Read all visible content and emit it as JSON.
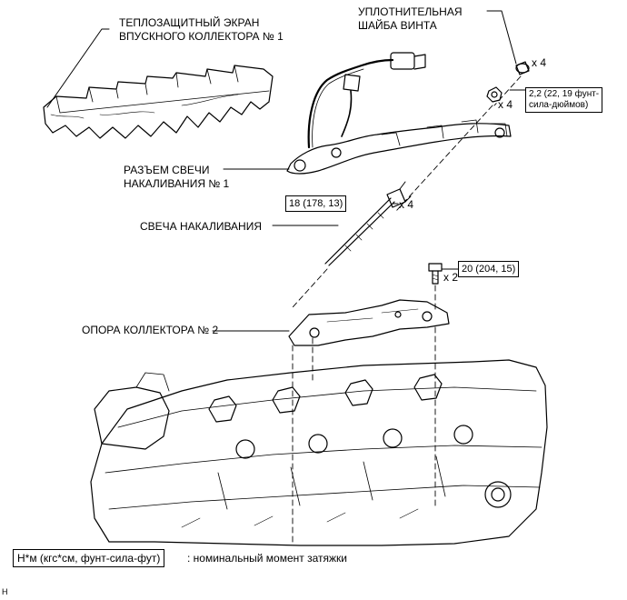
{
  "labels": {
    "heat_shield_line1": "ТЕПЛОЗАЩИТНЫЙ ЭКРАН",
    "heat_shield_line2": "ВПУСКНОГО КОЛЛЕКТОРА № 1",
    "screw_washer_line1": "УПЛОТНИТЕЛЬНАЯ",
    "screw_washer_line2": "ШАЙБА ВИНТА",
    "connector_line1": "РАЗЪЕМ СВЕЧИ",
    "connector_line2": "НАКАЛИВАНИЯ № 1",
    "glow_plug": "СВЕЧА НАКАЛИВАНИЯ",
    "bracket": "ОПОРА КОЛЛЕКТОРА № 2"
  },
  "torques": {
    "nut_line1": "2,2 (22, 19 фунт-",
    "nut_line2": "сила-дюймов)",
    "glow_plug": "18 (178, 13)",
    "bolt": "20 (204, 15)"
  },
  "quantities": {
    "washer": "x 4",
    "nut": "x 4",
    "glow_plug": "x 4",
    "bolt": "x 2"
  },
  "legend": {
    "units": "Н*м (кгс*см, фунт-сила-фут)",
    "description": ": номинальный момент затяжки"
  },
  "corner_mark": "H"
}
